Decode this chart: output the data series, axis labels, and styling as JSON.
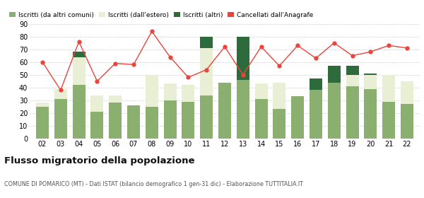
{
  "years": [
    "02",
    "03",
    "04",
    "05",
    "06",
    "07",
    "08",
    "09",
    "10",
    "11",
    "12",
    "13",
    "14",
    "15",
    "16",
    "17",
    "18",
    "19",
    "20",
    "21",
    "22"
  ],
  "iscritti_altri_comuni": [
    25,
    31,
    42,
    21,
    28,
    26,
    25,
    30,
    29,
    34,
    44,
    46,
    31,
    23,
    33,
    38,
    44,
    41,
    39,
    29,
    27
  ],
  "iscritti_estero": [
    3,
    8,
    22,
    13,
    6,
    0,
    25,
    13,
    13,
    37,
    0,
    0,
    12,
    21,
    0,
    0,
    0,
    9,
    11,
    21,
    18
  ],
  "iscritti_altri": [
    0,
    0,
    4,
    0,
    0,
    0,
    0,
    0,
    0,
    9,
    0,
    34,
    0,
    0,
    0,
    9,
    13,
    7,
    1,
    0,
    0
  ],
  "cancellati": [
    60,
    38,
    76,
    45,
    59,
    58,
    84,
    64,
    48,
    54,
    72,
    50,
    72,
    57,
    73,
    63,
    75,
    65,
    68,
    73,
    71
  ],
  "color_altri_comuni": "#8aaf6e",
  "color_estero": "#e8efd4",
  "color_altri": "#2d6b3c",
  "color_cancellati": "#e8453c",
  "title": "Flusso migratorio della popolazione",
  "subtitle": "COMUNE DI POMARICO (MT) - Dati ISTAT (bilancio demografico 1 gen-31 dic) - Elaborazione TUTTITALIA.IT",
  "legend_labels": [
    "Iscritti (da altri comuni)",
    "Iscritti (dall'estero)",
    "Iscritti (altri)",
    "Cancellati dall'Anagrafe"
  ],
  "ylim": [
    0,
    90
  ],
  "yticks": [
    0,
    10,
    20,
    30,
    40,
    50,
    60,
    70,
    80,
    90
  ],
  "background_color": "#ffffff",
  "grid_color": "#d0d0d0"
}
